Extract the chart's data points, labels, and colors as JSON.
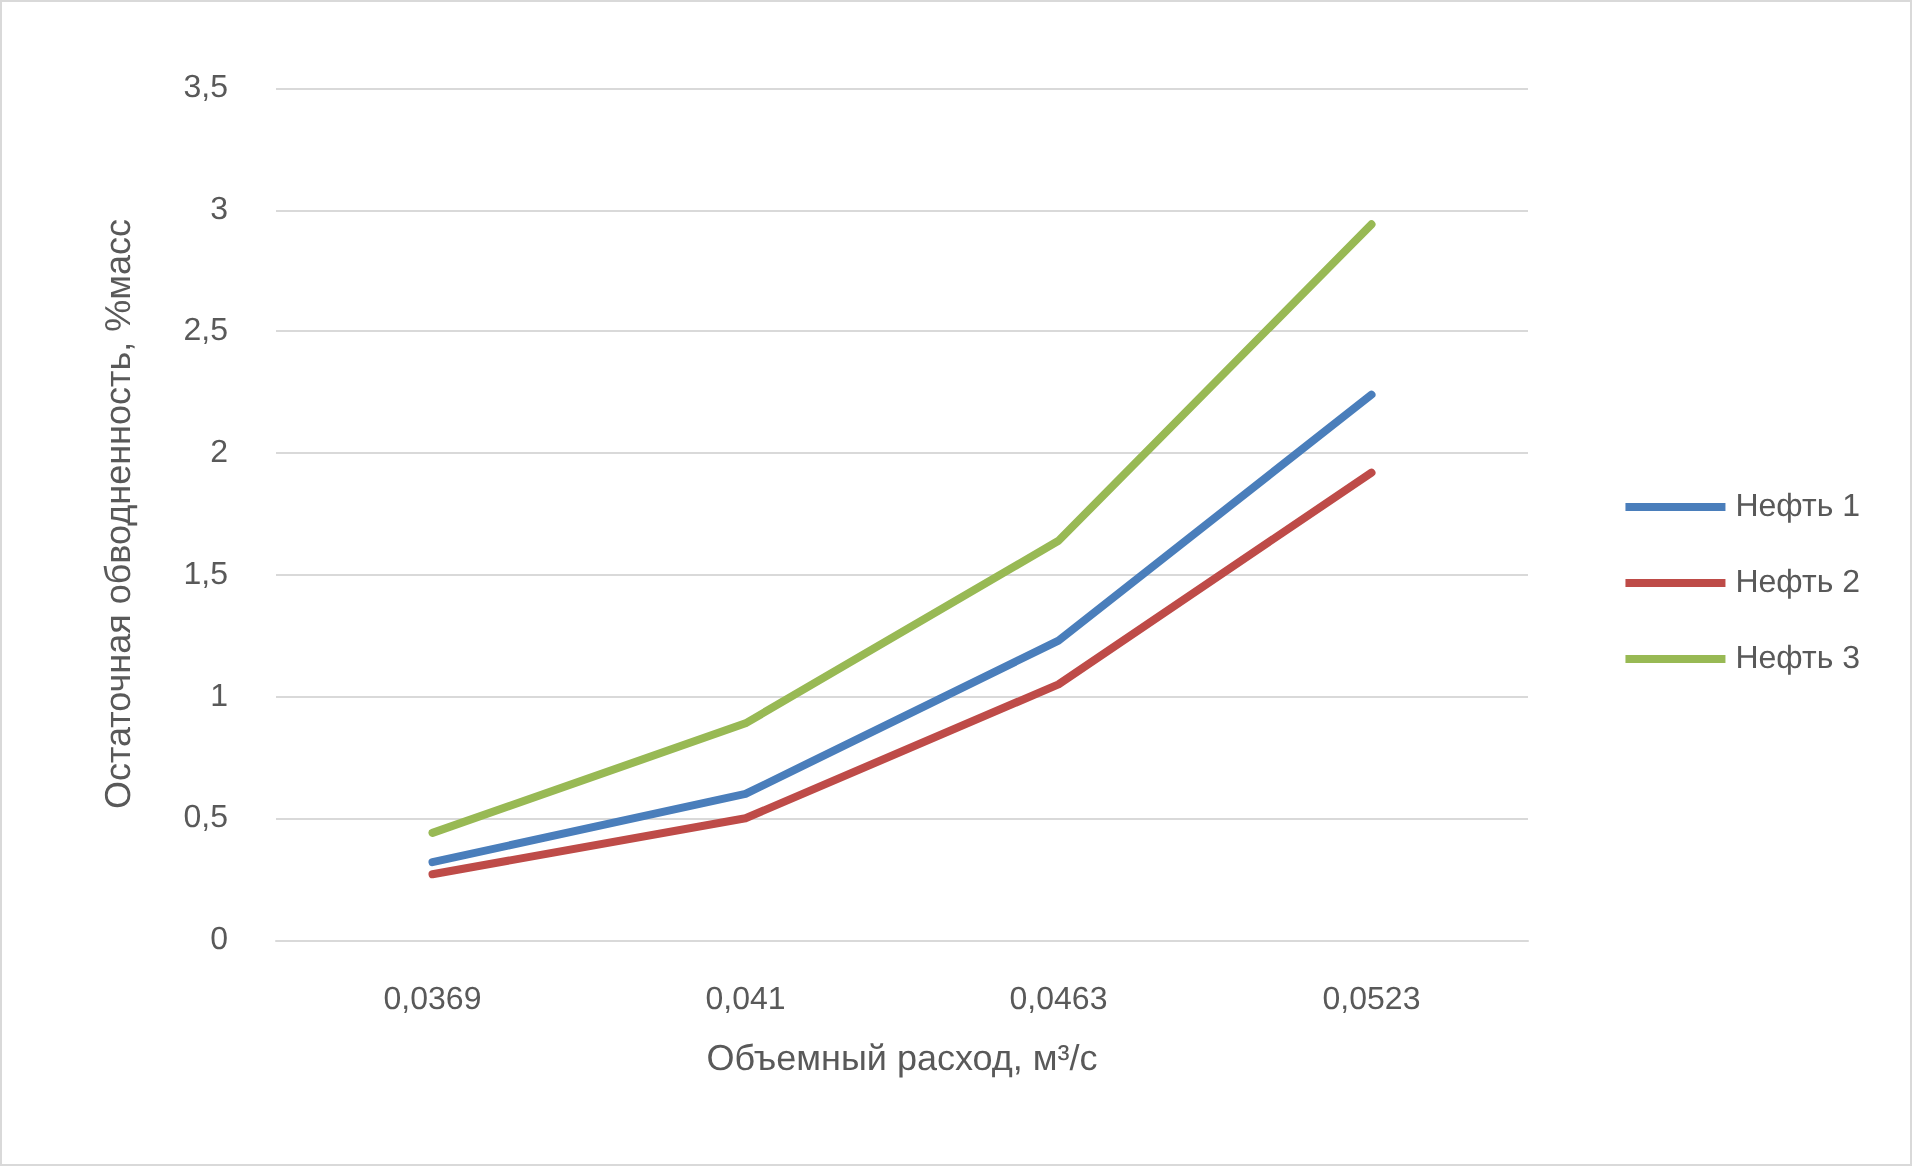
{
  "chart_data": {
    "type": "line",
    "xlabel": "Объемный расход, м³/с",
    "ylabel": "Остаточная обводненность, %масс",
    "categories": [
      "0,0369",
      "0,041",
      "0,0463",
      "0,0523"
    ],
    "series": [
      {
        "name": "Нефть 1",
        "color": "#4a7ebb",
        "values": [
          0.32,
          0.6,
          1.23,
          2.24
        ]
      },
      {
        "name": "Нефть 2",
        "color": "#be4b48",
        "values": [
          0.27,
          0.5,
          1.05,
          1.92
        ]
      },
      {
        "name": "Нефть 3",
        "color": "#98b954",
        "values": [
          0.44,
          0.89,
          1.64,
          2.94
        ]
      }
    ],
    "ylim": [
      0,
      3.5
    ],
    "yticks": [
      0,
      {
        "value": 0.5,
        "label": "0,5"
      },
      1,
      {
        "value": 1.5,
        "label": "1,5"
      },
      2,
      {
        "value": 2.5,
        "label": "2,5"
      },
      3,
      {
        "value": 3.5,
        "label": "3,5"
      }
    ],
    "grid": "y",
    "legend": "right",
    "marker": "none",
    "line_style": "solid"
  }
}
